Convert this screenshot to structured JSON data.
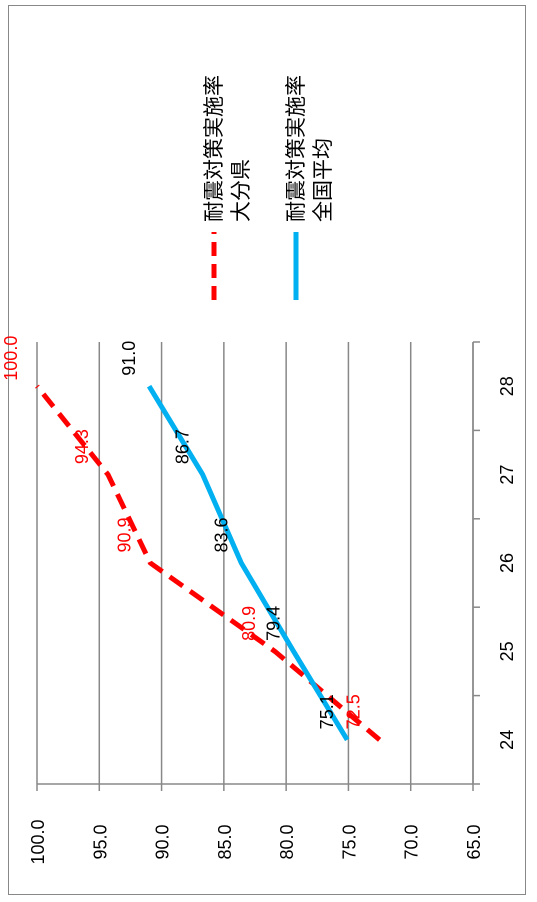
{
  "chart_data": {
    "type": "line",
    "title": "",
    "orientation": "rotated-90",
    "x_categories": [
      "24",
      "25",
      "26",
      "27",
      "28"
    ],
    "y_ticks": [
      "100.0",
      "95.0",
      "90.0",
      "85.0",
      "80.0",
      "75.0",
      "70.0",
      "65.0"
    ],
    "ylim": [
      65,
      100
    ],
    "grid": true,
    "legend_position": "right",
    "series": [
      {
        "name": "耐震対策実施率大分県",
        "legend_lines": [
          "耐震対策実施率",
          "大分県"
        ],
        "color": "#ff0000",
        "dash": true,
        "values": [
          72.5,
          80.9,
          90.9,
          94.3,
          100.0
        ],
        "labels": [
          "72.5",
          "80.9",
          "90.9",
          "94.3",
          "100.0"
        ]
      },
      {
        "name": "耐震対策実施率全国平均",
        "legend_lines": [
          "耐震対策実施率",
          "全国平均"
        ],
        "color": "#00b0f0",
        "dash": false,
        "values": [
          75.1,
          79.4,
          83.6,
          86.7,
          91.0
        ],
        "labels": [
          "75.1",
          "79.4",
          "83.6",
          "86.7",
          "91.0"
        ]
      }
    ]
  }
}
